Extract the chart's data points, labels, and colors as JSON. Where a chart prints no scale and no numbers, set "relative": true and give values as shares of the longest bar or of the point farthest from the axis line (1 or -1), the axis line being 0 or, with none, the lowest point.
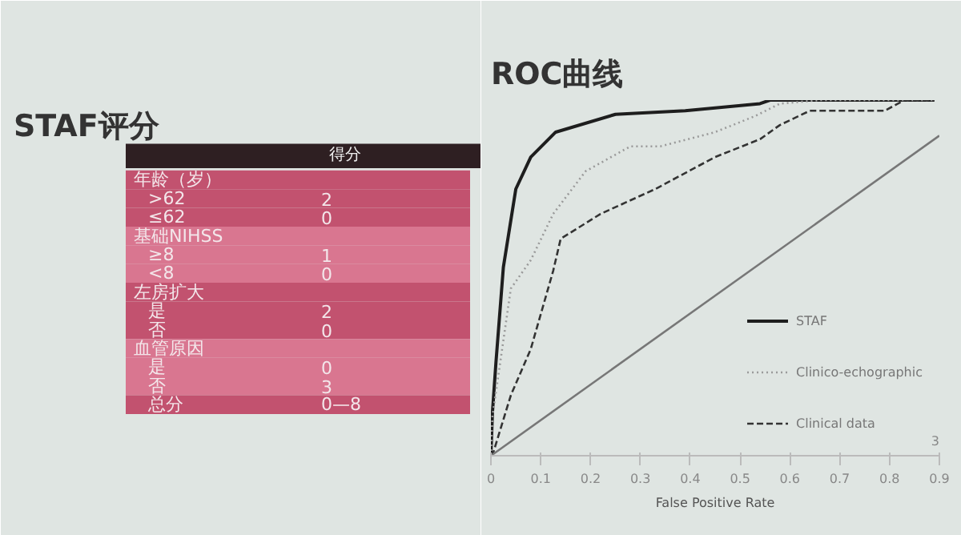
{
  "chart_data": [
    {
      "type": "other",
      "title": "STAF评分",
      "subtitle": "得分",
      "categories": [
        "年龄（岁）",
        ">62",
        "≤62",
        "基础NIHSS",
        "≥8",
        "<8",
        "左房扩大",
        "是",
        "否",
        "血管原因",
        "是",
        "否",
        "总分"
      ],
      "value_labels": [
        null,
        "2",
        "0",
        null,
        "1",
        "0",
        null,
        "2",
        "0",
        null,
        "0",
        "3",
        "0—8"
      ],
      "colors": [
        "#c2526f",
        "#c2526f",
        "#c2526f",
        "#d97690",
        "#d97690",
        "#d97690",
        "#c2526f",
        "#c2526f",
        "#c2526f",
        "#d97690",
        "#d97690",
        "#d97690",
        "#c2526f"
      ]
    },
    {
      "type": "line",
      "title": "ROC曲线",
      "xlabel": "False Positive Rate",
      "relative": true,
      "xlim": [
        0,
        0.9
      ],
      "xticks": [
        0,
        0.1,
        0.2,
        0.3,
        0.4,
        0.5,
        0.6,
        0.7,
        0.8,
        0.9
      ],
      "grid": false,
      "legend": "bottom right",
      "tick_labels": "x",
      "annotations": [
        "3"
      ],
      "series": [
        {
          "name": "STAF",
          "color": "#1e1e1e",
          "line_style": "solid",
          "x": [
            0,
            0.003,
            0.01,
            0.02,
            0.025,
            0.05,
            0.08,
            0.13,
            0.25,
            0.39,
            0.54,
            0.56,
            0.89
          ],
          "values": [
            0,
            0.12,
            0.26,
            0.44,
            0.53,
            0.75,
            0.84,
            0.91,
            0.96,
            0.97,
            0.99,
            1.0,
            1.0
          ]
        },
        {
          "name": "Clinico-echographic",
          "color": "#9a9a9a",
          "line_style": "dotted",
          "x": [
            0,
            0.003,
            0.04,
            0.08,
            0.125,
            0.19,
            0.28,
            0.34,
            0.45,
            0.53,
            0.58,
            0.66,
            0.89
          ],
          "values": [
            0,
            0.11,
            0.47,
            0.55,
            0.68,
            0.8,
            0.87,
            0.87,
            0.91,
            0.955,
            0.99,
            1.0,
            1.0
          ]
        },
        {
          "name": "Clinical data",
          "color": "#333333",
          "line_style": "dashed",
          "x": [
            0,
            0.005,
            0.04,
            0.08,
            0.125,
            0.14,
            0.22,
            0.33,
            0.45,
            0.54,
            0.58,
            0.64,
            0.79,
            0.83,
            0.89
          ],
          "values": [
            0,
            0.01,
            0.17,
            0.3,
            0.52,
            0.61,
            0.68,
            0.75,
            0.84,
            0.89,
            0.93,
            0.97,
            0.97,
            1.0,
            1.0
          ]
        },
        {
          "color": "#777777",
          "line_style": "solid",
          "x": [
            0,
            0.9
          ],
          "values": [
            0,
            0.9
          ]
        }
      ]
    }
  ]
}
